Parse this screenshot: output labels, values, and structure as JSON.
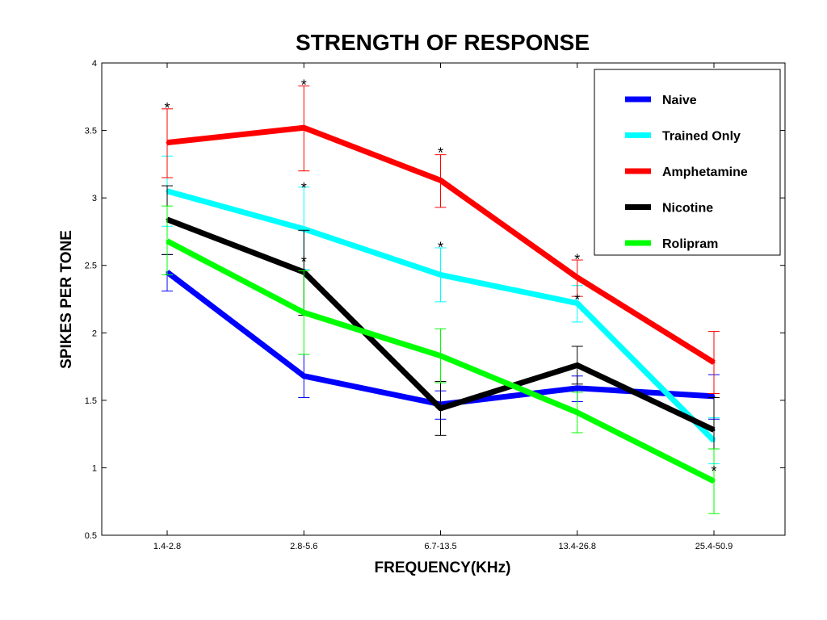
{
  "chart_data": {
    "type": "line",
    "title": "STRENGTH OF RESPONSE",
    "xlabel": "FREQUENCY(KHz)",
    "ylabel": "SPIKES PER TONE",
    "categories": [
      "1.4-2.8",
      "2.8-5.6",
      "6.7-13.5",
      "13.4-26.8",
      "25.4-50.9"
    ],
    "ylim": [
      0.5,
      4
    ],
    "yticks": [
      "0.5",
      "1",
      "1.5",
      "2",
      "2.5",
      "3",
      "3.5",
      "4"
    ],
    "grid": false,
    "legend_position": "top-right",
    "series": [
      {
        "name": "Naive",
        "color": "#0000ff",
        "values": [
          2.45,
          1.68,
          1.47,
          1.59,
          1.53
        ],
        "err_low": [
          2.31,
          1.52,
          1.36,
          1.49,
          1.36
        ],
        "err_high": [
          2.58,
          1.84,
          1.57,
          1.68,
          1.69
        ]
      },
      {
        "name": "Trained Only",
        "color": "#00ffff",
        "values": [
          3.05,
          2.77,
          2.43,
          2.22,
          1.2
        ],
        "err_low": [
          2.79,
          2.47,
          2.23,
          2.08,
          1.03
        ],
        "err_high": [
          3.31,
          3.08,
          2.63,
          2.35,
          1.37
        ]
      },
      {
        "name": "Amphetamine",
        "color": "#ff0000",
        "values": [
          3.41,
          3.52,
          3.13,
          2.41,
          1.78
        ],
        "err_low": [
          3.15,
          3.2,
          2.93,
          2.27,
          1.55
        ],
        "err_high": [
          3.66,
          3.83,
          3.32,
          2.54,
          2.01
        ]
      },
      {
        "name": "Nicotine",
        "color": "#000000",
        "values": [
          2.84,
          2.45,
          1.44,
          1.76,
          1.28
        ],
        "err_low": [
          2.58,
          2.13,
          1.24,
          1.62,
          1.14
        ],
        "err_high": [
          3.09,
          2.76,
          1.64,
          1.9,
          1.52
        ]
      },
      {
        "name": "Rolipram",
        "color": "#00ff00",
        "values": [
          2.68,
          2.15,
          1.83,
          1.41,
          0.9
        ],
        "err_low": [
          2.43,
          1.84,
          1.63,
          1.26,
          0.66
        ],
        "err_high": [
          2.94,
          2.46,
          2.03,
          1.56,
          1.14
        ]
      }
    ],
    "annotations": [
      {
        "text": "*",
        "x": "1.4-2.8",
        "y": 3.7
      },
      {
        "text": "*",
        "x": "2.8-5.6",
        "y": 3.87
      },
      {
        "text": "*",
        "x": "2.8-5.6",
        "y": 3.11
      },
      {
        "text": "*",
        "x": "2.8-5.6",
        "y": 2.56
      },
      {
        "text": "*",
        "x": "6.7-13.5",
        "y": 3.37
      },
      {
        "text": "*",
        "x": "6.7-13.5",
        "y": 2.67
      },
      {
        "text": "*",
        "x": "13.4-26.8",
        "y": 2.58
      },
      {
        "text": "*",
        "x": "13.4-26.8",
        "y": 2.28
      },
      {
        "text": "*",
        "x": "25.4-50.9",
        "y": 1.01
      }
    ]
  }
}
